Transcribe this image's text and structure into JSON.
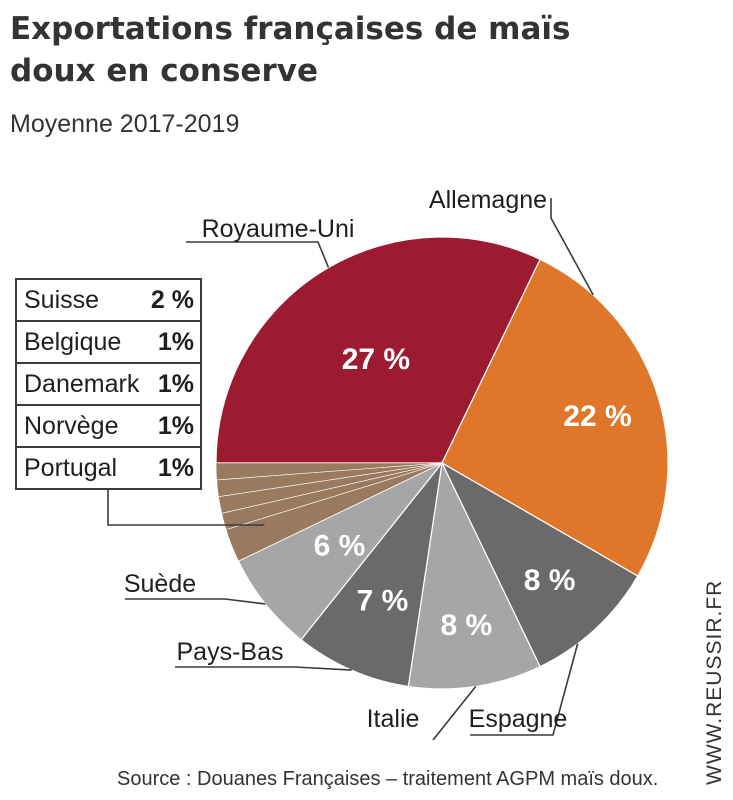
{
  "title": "Exportations françaises de maïs doux en conserve",
  "subtitle": "Moyenne 2017-2019",
  "source": "Source : Douanes Françaises – traitement AGPM maïs doux.",
  "watermark": "WWW.REUSSIR.FR",
  "chart_data": {
    "type": "pie",
    "unit": "%",
    "slices": [
      {
        "label": "Royaume-Uni",
        "value": 27,
        "value_label": "27 %",
        "color": "#9c1b30"
      },
      {
        "label": "Allemagne",
        "value": 22,
        "value_label": "22 %",
        "color": "#e0762a"
      },
      {
        "label": "Espagne",
        "value": 8,
        "value_label": "8 %",
        "color": "#6a6a6c"
      },
      {
        "label": "Italie",
        "value": 8,
        "value_label": "8 %",
        "color": "#a6a6a8"
      },
      {
        "label": "Pays-Bas",
        "value": 7,
        "value_label": "7 %",
        "color": "#6a6a6c"
      },
      {
        "label": "Suède",
        "value": 6,
        "value_label": "6 %",
        "color": "#a6a6a8"
      },
      {
        "label": "Suisse",
        "value": 2,
        "value_label": "2 %",
        "color": "#9a7a5e"
      },
      {
        "label": "Belgique",
        "value": 1,
        "value_label": "1%",
        "color": "#9a7a5e"
      },
      {
        "label": "Danemark",
        "value": 1,
        "value_label": "1%",
        "color": "#9a7a5e"
      },
      {
        "label": "Norvège",
        "value": 1,
        "value_label": "1%",
        "color": "#9a7a5e"
      },
      {
        "label": "Portugal",
        "value": 1,
        "value_label": "1%",
        "color": "#9a7a5e"
      }
    ],
    "small_slices_table": [
      {
        "label": "Suisse",
        "value_label": "2 %"
      },
      {
        "label": "Belgique",
        "value_label": "1%"
      },
      {
        "label": "Danemark",
        "value_label": "1%"
      },
      {
        "label": "Norvège",
        "value_label": "1%"
      },
      {
        "label": "Portugal",
        "value_label": "1%"
      }
    ]
  }
}
